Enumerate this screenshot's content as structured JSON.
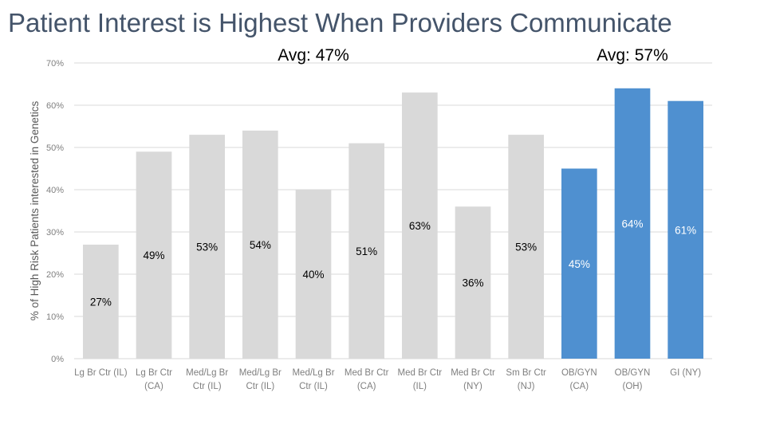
{
  "title": "Patient Interest is Highest When Providers Communicate",
  "colors": {
    "gray_bar": "#d9d9d9",
    "blue_bar": "#4f90d0",
    "gridline": "#d9d9d9",
    "title": "#44546a"
  },
  "chart_data": {
    "type": "bar",
    "ylabel": "% of High Risk Patients interested in Genetics",
    "ylim": [
      0,
      70
    ],
    "yticks": [
      "0%",
      "10%",
      "20%",
      "30%",
      "40%",
      "50%",
      "60%",
      "70%"
    ],
    "grid": true,
    "categories": [
      [
        "Lg Br Ctr (IL)"
      ],
      [
        "Lg Br Ctr",
        "(CA)"
      ],
      [
        "Med/Lg Br",
        "Ctr (IL)"
      ],
      [
        "Med/Lg Br",
        "Ctr (IL)"
      ],
      [
        "Med/Lg Br",
        "Ctr (IL)"
      ],
      [
        "Med Br Ctr",
        "(CA)"
      ],
      [
        "Med Br Ctr",
        "(IL)"
      ],
      [
        "Med Br Ctr",
        "(NY)"
      ],
      [
        "Sm Br Ctr",
        "(NJ)"
      ],
      [
        "OB/GYN",
        "(CA)"
      ],
      [
        "OB/GYN",
        "(OH)"
      ],
      [
        "GI (NY)"
      ]
    ],
    "values": [
      27,
      49,
      53,
      54,
      40,
      51,
      63,
      36,
      53,
      45,
      64,
      61
    ],
    "data_labels": [
      "27%",
      "49%",
      "53%",
      "54%",
      "40%",
      "51%",
      "63%",
      "36%",
      "53%",
      "45%",
      "64%",
      "61%"
    ],
    "highlight": [
      false,
      false,
      false,
      false,
      false,
      false,
      false,
      false,
      false,
      true,
      true,
      true
    ],
    "annotations": [
      {
        "text": "Avg: 47%",
        "group_start": 0,
        "group_end": 8
      },
      {
        "text": "Avg: 57%",
        "group_start": 9,
        "group_end": 11
      }
    ]
  }
}
